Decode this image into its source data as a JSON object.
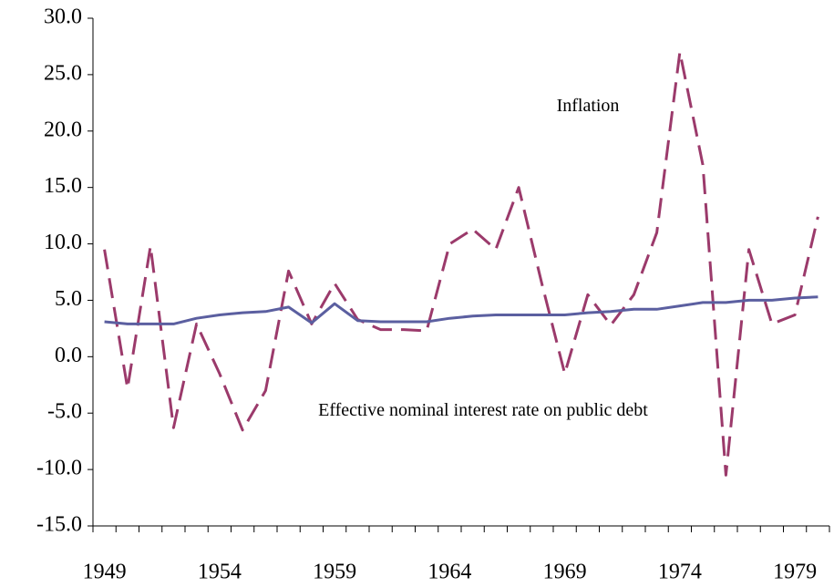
{
  "chart_data": {
    "type": "line",
    "categories": [
      "1949",
      null,
      null,
      null,
      null,
      "1954",
      null,
      null,
      null,
      null,
      "1959",
      null,
      null,
      null,
      null,
      "1964",
      null,
      null,
      null,
      null,
      "1969",
      null,
      null,
      null,
      null,
      "1974",
      null,
      null,
      null,
      null,
      "1979",
      null
    ],
    "series": [
      {
        "name": "Inflation",
        "color": "#9b3a6b",
        "dashed": true,
        "values": [
          9.5,
          -2.8,
          9.8,
          -6.3,
          2.9,
          -1.5,
          -6.5,
          -3.0,
          7.6,
          2.9,
          6.5,
          3.3,
          2.4,
          2.4,
          2.3,
          10.0,
          11.3,
          9.5,
          15.0,
          6.5,
          -1.5,
          5.5,
          2.8,
          5.5,
          11.0,
          27.0,
          17.0,
          -10.5,
          9.5,
          2.9,
          3.7,
          12.4
        ]
      },
      {
        "name": "Effective nominal interest rate on public debt",
        "color": "#5b5fa0",
        "dashed": false,
        "values": [
          3.1,
          2.9,
          2.9,
          2.9,
          3.4,
          3.7,
          3.9,
          4.0,
          4.4,
          3.0,
          4.7,
          3.2,
          3.1,
          3.1,
          3.1,
          3.4,
          3.6,
          3.7,
          3.7,
          3.7,
          3.7,
          3.9,
          4.0,
          4.2,
          4.2,
          4.5,
          4.8,
          4.8,
          5.0,
          5.0,
          5.2,
          5.3
        ]
      }
    ],
    "ylim": [
      -15,
      30
    ],
    "yticks": [
      {
        "value": -15,
        "label": "-15.0"
      },
      {
        "value": -10,
        "label": "-10.0"
      },
      {
        "value": -5,
        "label": "-5.0"
      },
      {
        "value": 0,
        "label": "0.0"
      },
      {
        "value": 5,
        "label": "5.0"
      },
      {
        "value": 10,
        "label": "10.0"
      },
      {
        "value": 15,
        "label": "15.0"
      },
      {
        "value": 20,
        "label": "20.0"
      },
      {
        "value": 25,
        "label": "25.0"
      },
      {
        "value": 30,
        "label": "30.0"
      }
    ],
    "grid": false
  }
}
